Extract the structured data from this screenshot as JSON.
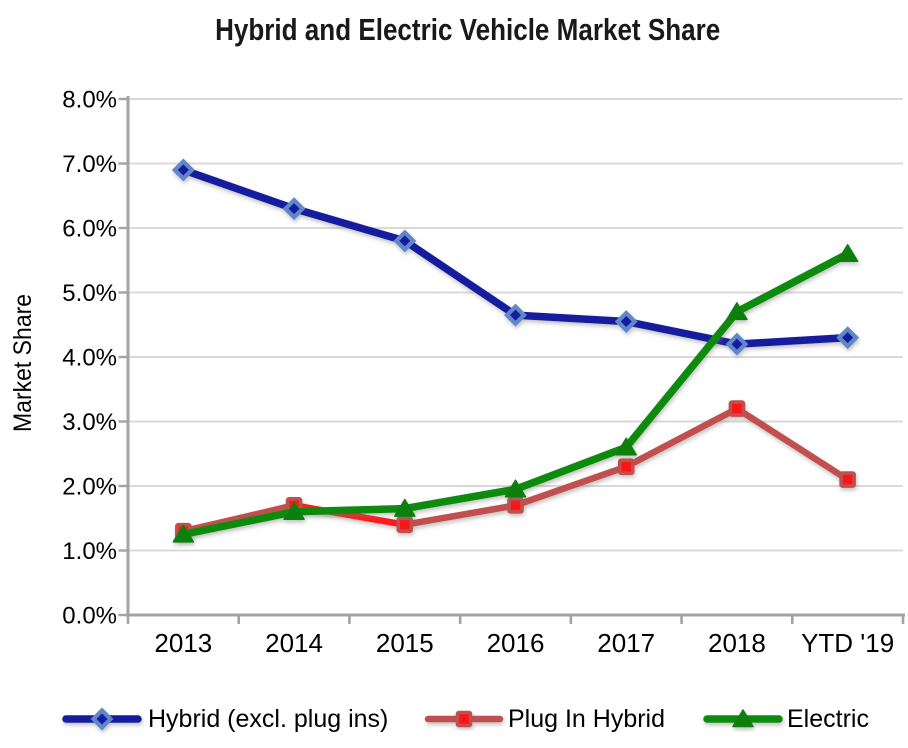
{
  "chart": {
    "title": "Hybrid and Electric Vehicle Market Share",
    "ylabel": "Market Share"
  },
  "legend": {
    "position": "bottom",
    "items": [
      {
        "label": "Hybrid (excl. plug ins)"
      },
      {
        "label": "Plug In Hybrid"
      },
      {
        "label": "Electric"
      }
    ]
  },
  "chart_data": {
    "type": "line",
    "title": "Hybrid and Electric Vehicle Market Share",
    "ylabel": "Market Share",
    "xlabel": "",
    "categories": [
      "2013",
      "2014",
      "2015",
      "2016",
      "2017",
      "2018",
      "YTD '19"
    ],
    "series": [
      {
        "name": "Hybrid (excl. plug ins)",
        "values": [
          6.9,
          6.3,
          5.8,
          4.65,
          4.55,
          4.2,
          4.3
        ],
        "color": "#141A9E",
        "marker": "diamond",
        "marker_fill": "#141A9E",
        "marker_stroke": "#5E87C9"
      },
      {
        "name": "Plug In Hybrid",
        "values": [
          1.3,
          1.7,
          1.4,
          1.7,
          2.3,
          3.2,
          2.1
        ],
        "color": "#C0504D",
        "segment_colors": [
          "#C0504D",
          "#F91D1A",
          "#C0504D",
          "#C0504D",
          "#C0504D",
          "#C0504D"
        ],
        "marker": "square",
        "marker_fill": "#FA1512",
        "marker_stroke": "#C0504D"
      },
      {
        "name": "Electric",
        "values": [
          1.25,
          1.6,
          1.65,
          1.95,
          2.6,
          4.7,
          5.6
        ],
        "color": "#0E8B0E",
        "marker": "triangle",
        "marker_fill": "#097F09",
        "marker_stroke": "#097F09"
      }
    ],
    "ylim": [
      0,
      8
    ],
    "ytick_step": 1,
    "ytick_labels": [
      "0.0%",
      "1.0%",
      "2.0%",
      "3.0%",
      "4.0%",
      "5.0%",
      "6.0%",
      "7.0%",
      "8.0%"
    ],
    "grid": "horizontal",
    "gridline_color": "#D9D9D9",
    "axis_color": "#A3A3A3",
    "legend_position": "bottom"
  }
}
